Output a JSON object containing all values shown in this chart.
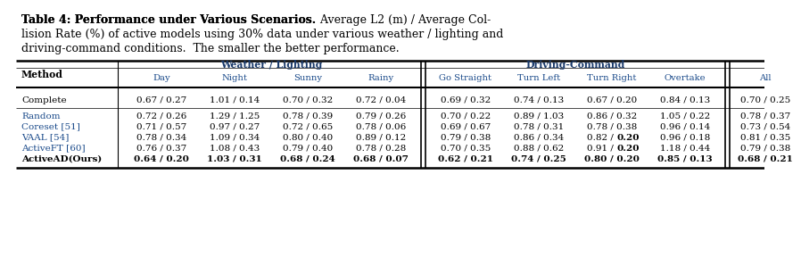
{
  "title_bold": "Table 4: Performance under Various Scenarios.",
  "title_normal": " Average L2 (m) / Average Collision Rate (%) of active models using 30% data under various weather / lighting and driving-command conditions. The smaller the better performance.",
  "weather_group": "Weather / Lighting",
  "driving_group": "Driving-Command",
  "weather_cols": [
    "Day",
    "Night",
    "Sunny",
    "Rainy"
  ],
  "driving_cols": [
    "Go Straight",
    "Turn Left",
    "Turn Right",
    "Overtake"
  ],
  "col_all": "All",
  "rows": {
    "Complete": [
      "0.67 / 0.27",
      "1.01 / 0.14",
      "0.70 / 0.32",
      "0.72 / 0.04",
      "0.69 / 0.32",
      "0.74 / 0.13",
      "0.67 / 0.20",
      "0.84 / 0.13",
      "0.70 / 0.25"
    ],
    "Random": [
      "0.72 / 0.26",
      "1.29 / 1.25",
      "0.78 / 0.39",
      "0.79 / 0.26",
      "0.70 / 0.22",
      "0.89 / 1.03",
      "0.86 / 0.32",
      "1.05 / 0.22",
      "0.78 / 0.37"
    ],
    "Coreset [51]": [
      "0.71 / 0.57",
      "0.97 / 0.27",
      "0.72 / 0.65",
      "0.78 / 0.06",
      "0.69 / 0.67",
      "0.78 / 0.31",
      "0.78 / 0.38",
      "0.96 / 0.14",
      "0.73 / 0.54"
    ],
    "VAAL [54]": [
      "0.78 / 0.34",
      "1.09 / 0.34",
      "0.80 / 0.40",
      "0.89 / 0.12",
      "0.79 / 0.38",
      "0.86 / 0.34",
      "0.82 / 0.20",
      "0.96 / 0.18",
      "0.81 / 0.35"
    ],
    "ActiveFT [60]": [
      "0.76 / 0.37",
      "1.08 / 0.43",
      "0.79 / 0.40",
      "0.78 / 0.28",
      "0.70 / 0.35",
      "0.88 / 0.62",
      "0.91 / 0.20",
      "1.18 / 0.44",
      "0.79 / 0.38"
    ],
    "ActiveAD(Ours)": [
      "0.64 / 0.20",
      "1.03 / 0.31",
      "0.68 / 0.24",
      "0.68 / 0.07",
      "0.62 / 0.21",
      "0.74 / 0.25",
      "0.80 / 0.20",
      "0.85 / 0.13",
      "0.68 / 0.21"
    ]
  },
  "method_order": [
    "Complete",
    "Random",
    "Coreset [51]",
    "VAAL [54]",
    "ActiveFT [60]",
    "ActiveAD(Ours)"
  ],
  "bold_row": "ActiveAD(Ours)",
  "partial_bold": {
    "VAAL [54]": {
      "6": "0.82 / **0.20**",
      "7": "0.96 / 0.18"
    },
    "ActiveFT [60]": {
      "6": "0.91 / **0.20**"
    }
  },
  "bg_color": "#ffffff",
  "text_color": "#000000",
  "blue_color": "#1a4a8a",
  "header_bold_color": "#1a3a6b"
}
